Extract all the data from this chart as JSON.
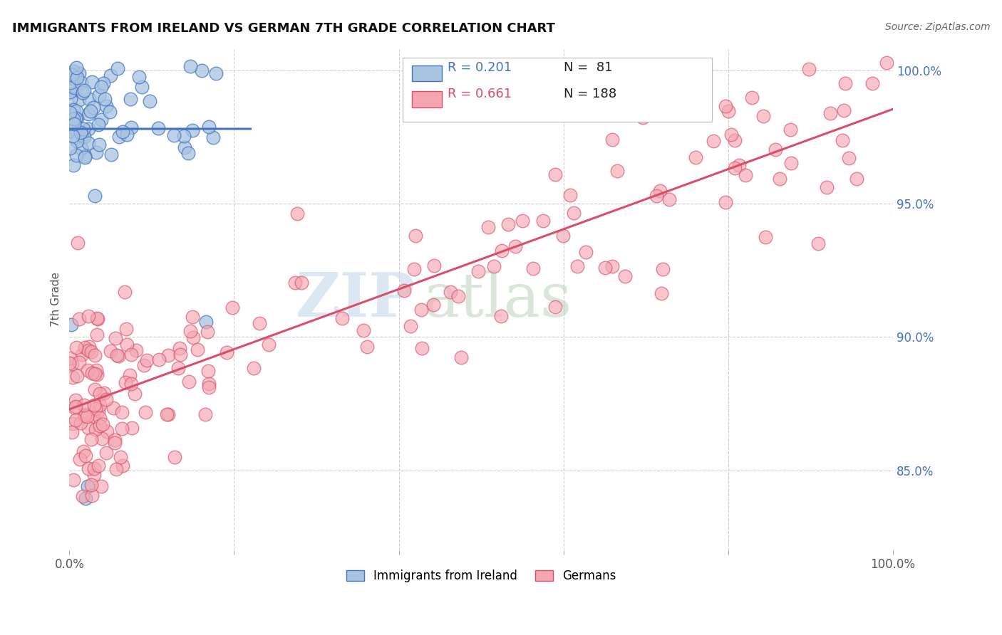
{
  "title": "IMMIGRANTS FROM IRELAND VS GERMAN 7TH GRADE CORRELATION CHART",
  "source": "Source: ZipAtlas.com",
  "ylabel": "7th Grade",
  "right_yticks": [
    85.0,
    90.0,
    95.0,
    100.0
  ],
  "right_ytick_labels": [
    "85.0%",
    "90.0%",
    "95.0%",
    "100.0%"
  ],
  "ireland_R": 0.201,
  "ireland_N": 81,
  "german_R": 0.661,
  "german_N": 188,
  "ireland_color": "#a8c4e0",
  "ireland_line_color": "#4472c4",
  "german_color": "#f4a7b0",
  "german_line_color": "#d94f6a",
  "ireland_seed": 42,
  "german_seed": 7,
  "watermark_zip": "ZIP",
  "watermark_atlas": "atlas",
  "legend_label_ireland": "Immigrants from Ireland",
  "legend_label_german": "Germans",
  "xlim": [
    0.0,
    1.0
  ],
  "ylim": [
    0.82,
    1.008
  ]
}
